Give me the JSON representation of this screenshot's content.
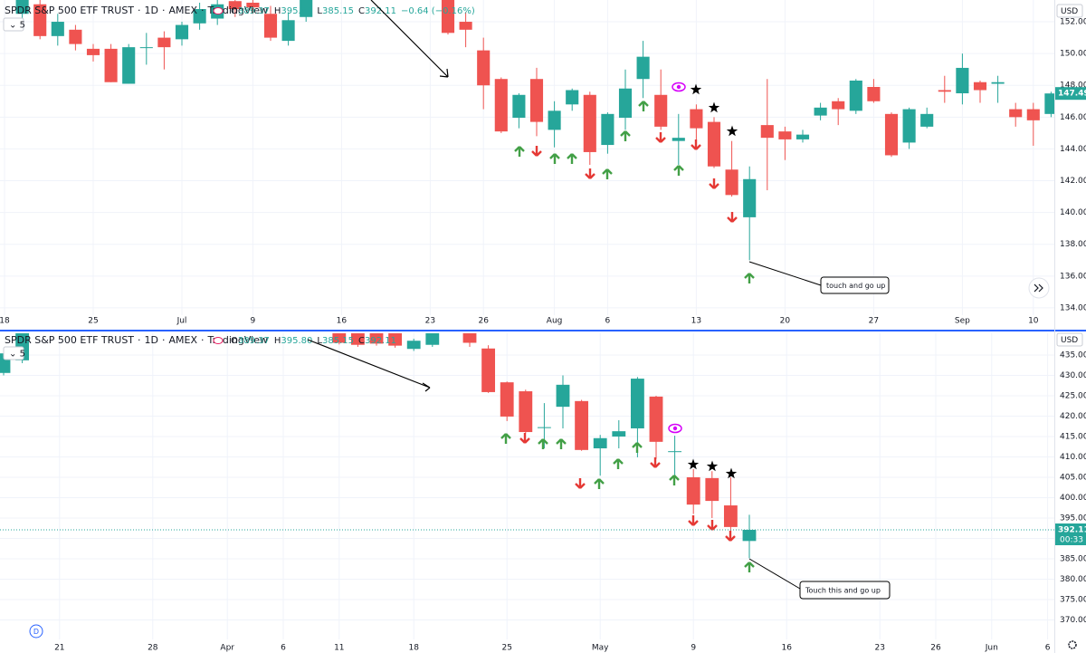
{
  "chart_data": [
    {
      "type": "candlestick",
      "categories": [
        "18",
        null,
        null,
        null,
        null,
        "25",
        null,
        null,
        null,
        null,
        "Jul",
        null,
        null,
        null,
        "9",
        null,
        null,
        null,
        null,
        "16",
        null,
        null,
        null,
        null,
        "23",
        null,
        null,
        "26",
        null,
        null,
        null,
        "Aug",
        null,
        null,
        "6",
        null,
        null,
        null,
        null,
        "13",
        null,
        null,
        null,
        null,
        "20",
        null,
        null,
        null,
        null,
        "27",
        null,
        null,
        null,
        null,
        "Sep",
        null,
        null,
        null,
        "10",
        null
      ],
      "open": [
        null,
        152.5,
        153.1,
        151.1,
        151.5,
        150.3,
        150.3,
        148.1,
        150.4,
        151.0,
        150.9,
        151.9,
        152.2,
        153.3,
        153.2,
        152.5,
        150.8,
        152.3,
        null,
        null,
        null,
        null,
        null,
        null,
        null,
        153.5,
        152.0,
        150.2,
        148.4,
        145.96,
        148.4,
        145.2,
        146.8,
        147.4,
        144.25,
        145.96,
        148.4,
        147.4,
        144.5,
        146.5,
        145.7,
        142.7,
        139.7,
        145.5,
        145.1,
        144.6,
        146.1,
        147.0,
        146.4,
        147.9,
        146.2,
        144.4,
        145.4,
        147.7,
        147.5,
        148.2,
        148.1,
        146.5,
        146.5,
        146.2
      ],
      "high": [
        null,
        153.6,
        153.4,
        152.5,
        151.8,
        150.6,
        150.6,
        150.6,
        151.3,
        151.4,
        152.0,
        153.2,
        153.4,
        153.5,
        153.4,
        153.0,
        152.6,
        153.6,
        null,
        null,
        null,
        null,
        null,
        null,
        null,
        153.7,
        152.6,
        151.0,
        148.5,
        147.5,
        149.1,
        147.0,
        147.8,
        147.6,
        146.3,
        149.0,
        150.8,
        149.0,
        146.2,
        146.8,
        146.0,
        144.5,
        142.9,
        148.4,
        145.4,
        145.2,
        146.9,
        147.2,
        148.4,
        148.4,
        146.3,
        146.6,
        146.6,
        148.6,
        150.0,
        148.3,
        148.6,
        146.9,
        146.9,
        147.6
      ],
      "low": [
        null,
        152.2,
        150.9,
        150.5,
        150.2,
        149.5,
        148.2,
        148.1,
        149.3,
        149.0,
        150.5,
        151.5,
        151.8,
        152.3,
        152.5,
        150.8,
        150.5,
        152.0,
        null,
        null,
        null,
        null,
        null,
        null,
        null,
        151.2,
        150.4,
        146.5,
        145.0,
        145.3,
        144.8,
        144.1,
        146.4,
        143.0,
        143.7,
        145.2,
        147.2,
        145.2,
        143.0,
        144.5,
        142.8,
        141.0,
        137.0,
        141.4,
        143.3,
        144.4,
        145.8,
        145.5,
        146.2,
        146.9,
        143.5,
        144.0,
        145.3,
        146.9,
        146.8,
        146.9,
        146.9,
        145.4,
        144.2,
        146.0
      ],
      "close": [
        null,
        153.4,
        151.1,
        152.0,
        150.6,
        149.9,
        148.2,
        150.4,
        150.4,
        150.4,
        151.8,
        152.8,
        153.1,
        152.8,
        152.9,
        151.0,
        152.1,
        153.4,
        null,
        null,
        null,
        null,
        null,
        null,
        null,
        151.3,
        151.5,
        148.0,
        145.1,
        147.4,
        145.7,
        146.4,
        147.7,
        143.8,
        146.2,
        147.8,
        149.8,
        145.4,
        144.7,
        145.3,
        142.9,
        141.1,
        142.1,
        144.7,
        144.6,
        144.9,
        146.6,
        146.5,
        148.3,
        147.0,
        143.6,
        146.5,
        146.2,
        147.6,
        149.1,
        147.7,
        148.2,
        146.0,
        145.8,
        147.49
      ],
      "ylim": [
        133.54,
        153.37
      ],
      "yticks": [
        {
          "value": 134,
          "label": "134.00"
        },
        {
          "value": 136,
          "label": "136.00"
        },
        {
          "value": 138,
          "label": "138.00"
        },
        {
          "value": 140,
          "label": "140.00"
        },
        {
          "value": 142,
          "label": "142.00"
        },
        {
          "value": 144,
          "label": "144.00"
        },
        {
          "value": 146,
          "label": "146.00"
        },
        {
          "value": 148,
          "label": "148.00"
        },
        {
          "value": 150,
          "label": "150.00"
        },
        {
          "value": 152,
          "label": "152.00"
        }
      ],
      "up_color": "#26a69a",
      "down_color": "#ef5350",
      "grid": true,
      "annotation": "touch and go up"
    },
    {
      "type": "candlestick",
      "categories": [
        null,
        null,
        null,
        "21",
        null,
        null,
        null,
        null,
        "28",
        null,
        null,
        null,
        "Apr",
        null,
        null,
        "6",
        null,
        null,
        "11",
        null,
        null,
        null,
        "18",
        null,
        null,
        null,
        null,
        "25",
        null,
        null,
        null,
        null,
        "May",
        null,
        null,
        null,
        null,
        "9",
        null,
        null,
        null,
        null,
        "16",
        null,
        null,
        null,
        null,
        "23",
        null,
        null,
        "26",
        null,
        null,
        "Jun",
        null,
        null,
        "6",
        null
      ],
      "open": [
        430.6,
        433.7,
        null,
        null,
        null,
        null,
        null,
        null,
        null,
        null,
        null,
        null,
        null,
        null,
        null,
        null,
        null,
        null,
        441.5,
        441.5,
        441.5,
        441.5,
        436.5,
        437.5,
        null,
        441.5,
        436.6,
        428.3,
        426.1,
        417.2,
        422.3,
        423.7,
        412.1,
        415.0,
        417.0,
        424.8,
        411.4,
        405.0,
        404.8,
        398.1,
        389.37,
        null,
        null,
        null,
        null,
        null,
        null,
        null,
        null,
        null,
        null,
        null,
        null,
        null,
        null,
        null,
        null,
        null
      ],
      "high": [
        436.6,
        441.5,
        null,
        null,
        null,
        null,
        null,
        null,
        null,
        null,
        null,
        null,
        null,
        null,
        null,
        null,
        null,
        null,
        442,
        442,
        442,
        442,
        439,
        441.5,
        null,
        442,
        437.4,
        428.5,
        426.5,
        423.2,
        430.0,
        424.0,
        415.4,
        419.0,
        429.6,
        425.0,
        415.2,
        407.0,
        406.5,
        405.0,
        395.8,
        null,
        null,
        null,
        null,
        null,
        null,
        null,
        null,
        null,
        null,
        null,
        null,
        null,
        null,
        null,
        null,
        null
      ],
      "low": [
        430.0,
        433.0,
        null,
        null,
        null,
        null,
        null,
        null,
        null,
        null,
        null,
        null,
        null,
        null,
        null,
        null,
        null,
        null,
        437.6,
        437.0,
        437.3,
        436.8,
        436.0,
        437.0,
        null,
        437.0,
        425.7,
        418.8,
        415.8,
        412.1,
        417.0,
        411.5,
        405.4,
        412.1,
        409.9,
        409.5,
        405.0,
        396.0,
        395.0,
        390.5,
        385.15,
        null,
        null,
        null,
        null,
        null,
        null,
        null,
        null,
        null,
        null,
        null,
        null,
        null,
        null,
        null,
        null,
        null
      ],
      "close": [
        435.4,
        441.0,
        null,
        null,
        null,
        null,
        null,
        null,
        null,
        null,
        null,
        null,
        null,
        null,
        null,
        null,
        null,
        null,
        438.0,
        437.5,
        437.8,
        437.3,
        438.5,
        441.0,
        null,
        438.0,
        425.9,
        419.9,
        416.1,
        417.3,
        427.7,
        411.7,
        414.6,
        416.3,
        429.2,
        413.7,
        411.4,
        398.3,
        399.2,
        392.8,
        392.11,
        null,
        null,
        null,
        null,
        null,
        null,
        null,
        null,
        null,
        null,
        null,
        null,
        null,
        null,
        null,
        null,
        null
      ],
      "ylim": [
        365.22,
        440.33
      ],
      "yticks": [
        {
          "value": 370,
          "label": "370.00"
        },
        {
          "value": 375,
          "label": "375.00"
        },
        {
          "value": 380,
          "label": "380.00"
        },
        {
          "value": 385,
          "label": "385.00"
        },
        {
          "value": 390,
          "label": "390.00"
        },
        {
          "value": 395,
          "label": "395.00"
        },
        {
          "value": 400,
          "label": "400.00"
        },
        {
          "value": 405,
          "label": "405.00"
        },
        {
          "value": 410,
          "label": "410.00"
        },
        {
          "value": 415,
          "label": "415.00"
        },
        {
          "value": 420,
          "label": "420.00"
        },
        {
          "value": 425,
          "label": "425.00"
        },
        {
          "value": 430,
          "label": "430.00"
        },
        {
          "value": 435,
          "label": "435.00"
        }
      ],
      "up_color": "#26a69a",
      "down_color": "#ef5350",
      "grid": true,
      "annotation": "Touch this and go up"
    }
  ],
  "header": {
    "symbol": "SPDR S&P 500 ETF TRUST",
    "separator": "·",
    "interval": "1D",
    "exchange": "AMEX",
    "source": "TradingView",
    "ohlc_letters": [
      "O",
      "H",
      "L",
      "C"
    ],
    "ohlc_values": [
      "389.37",
      "395.80",
      "385.15",
      "392.11"
    ],
    "change": "−0.64 (−0.16%)"
  },
  "currency": "USD",
  "interval_button": "5",
  "countdown": "00:33",
  "dividend_marker": "D"
}
